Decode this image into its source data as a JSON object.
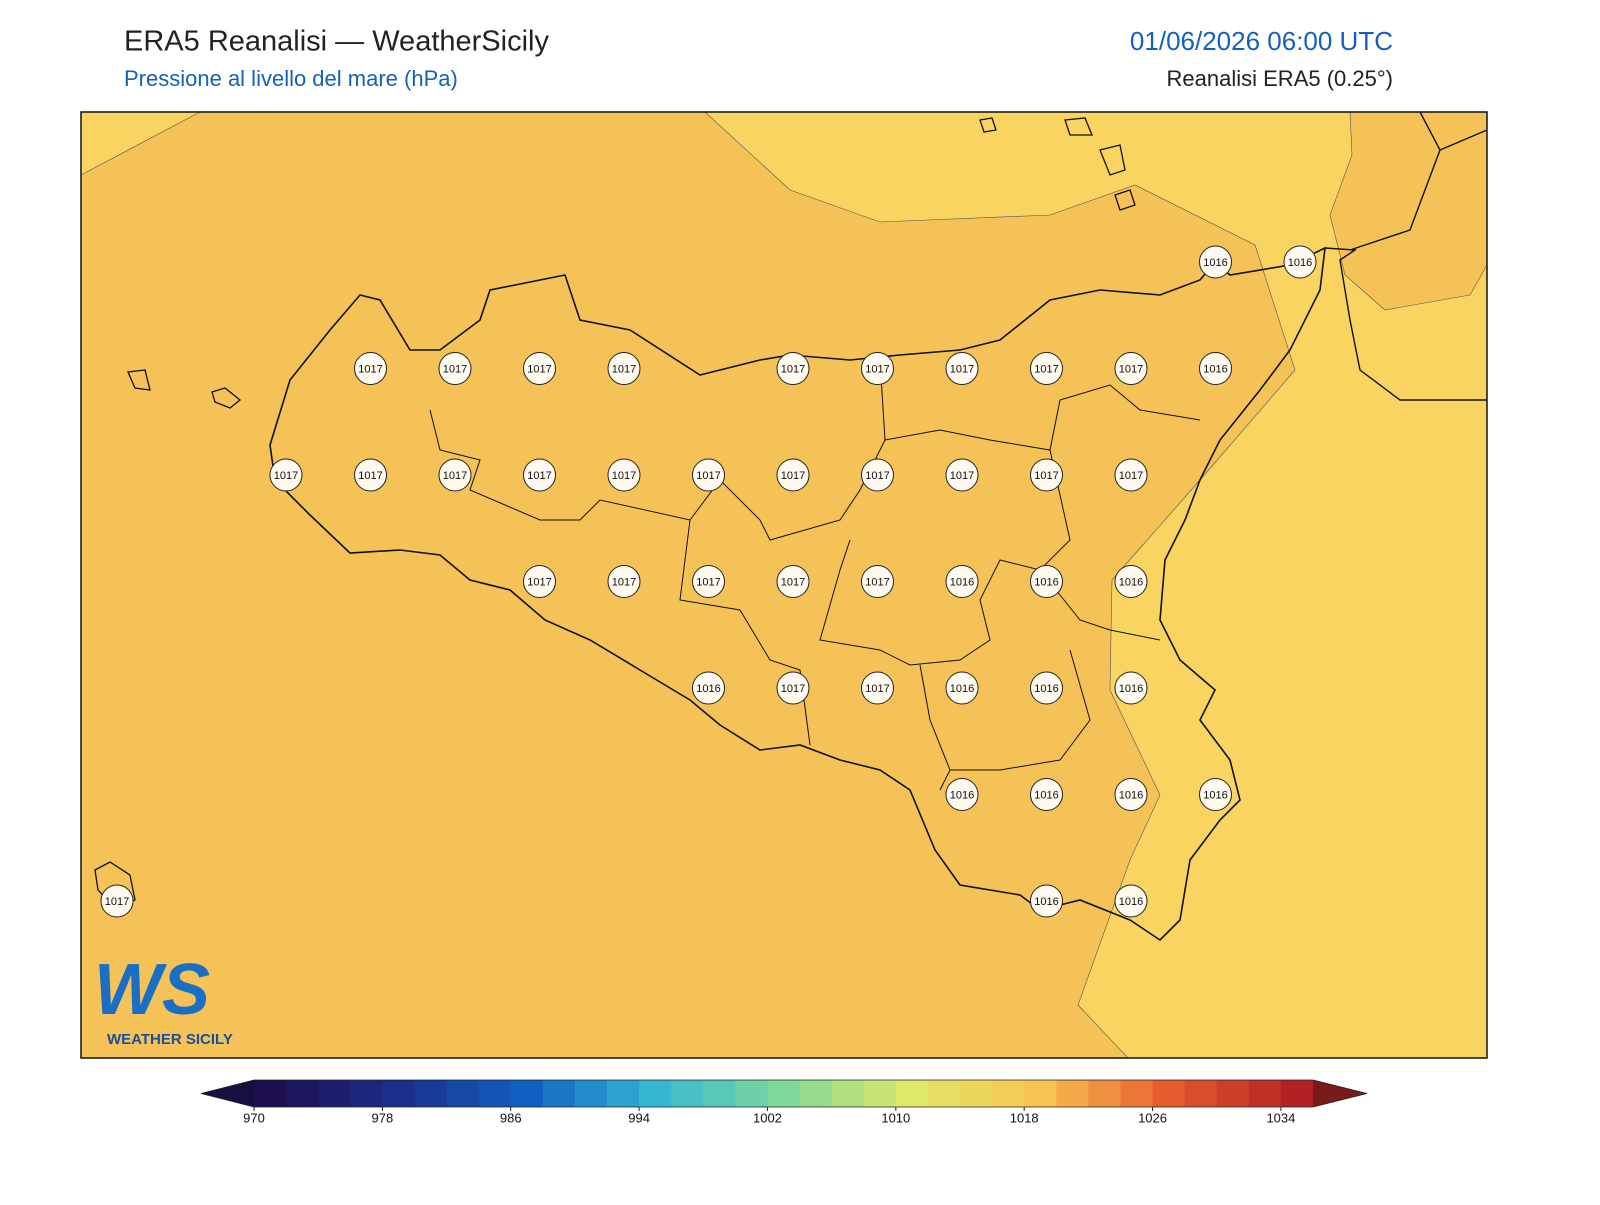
{
  "header": {
    "title": "ERA5 Reanalisi — WeatherSicily",
    "subtitle": "Pressione al livello del mare (hPa)",
    "datetime": "01/06/2026 06:00 UTC",
    "source": "Reanalisi ERA5 (0.25°)"
  },
  "map": {
    "base_color": "#f5c257",
    "light_color": "#fad460",
    "grid_labels": [
      [
        null,
        null,
        null,
        null,
        null,
        null,
        null,
        null,
        null,
        null,
        null,
        null,
        null,
        1016,
        1016
      ],
      [
        null,
        null,
        null,
        1017,
        1017,
        1017,
        1017,
        null,
        1017,
        1017,
        1017,
        1017,
        1017,
        1016,
        null
      ],
      [
        null,
        null,
        1017,
        1017,
        1017,
        1017,
        1017,
        1017,
        1017,
        1017,
        1017,
        1017,
        1017,
        null,
        null
      ],
      [
        null,
        null,
        null,
        null,
        null,
        1017,
        1017,
        1017,
        1017,
        1017,
        1016,
        1016,
        1016,
        null,
        null
      ],
      [
        null,
        null,
        null,
        null,
        null,
        null,
        null,
        1016,
        1017,
        1017,
        1016,
        1016,
        1016,
        null,
        null
      ],
      [
        null,
        null,
        null,
        null,
        null,
        null,
        null,
        null,
        null,
        null,
        1016,
        1016,
        1016,
        1016,
        null
      ],
      [
        1017,
        null,
        null,
        null,
        null,
        null,
        null,
        null,
        null,
        null,
        null,
        1016,
        1016,
        null,
        null
      ]
    ]
  },
  "colorbar": {
    "range": [
      970,
      1036
    ],
    "ticks": [
      970,
      978,
      986,
      994,
      1002,
      1010,
      1018,
      1026,
      1034
    ],
    "colors": [
      "#1e0f4f",
      "#1b2f8a",
      "#1160c2",
      "#35b8d2",
      "#7fd89a",
      "#e0e86a",
      "#f8c451",
      "#e65c2e",
      "#b42125"
    ],
    "extend_colors": [
      "#161040",
      "#7a1a1a"
    ]
  },
  "logo": {
    "mark": "WS",
    "text": "WEATHER SICILY"
  }
}
